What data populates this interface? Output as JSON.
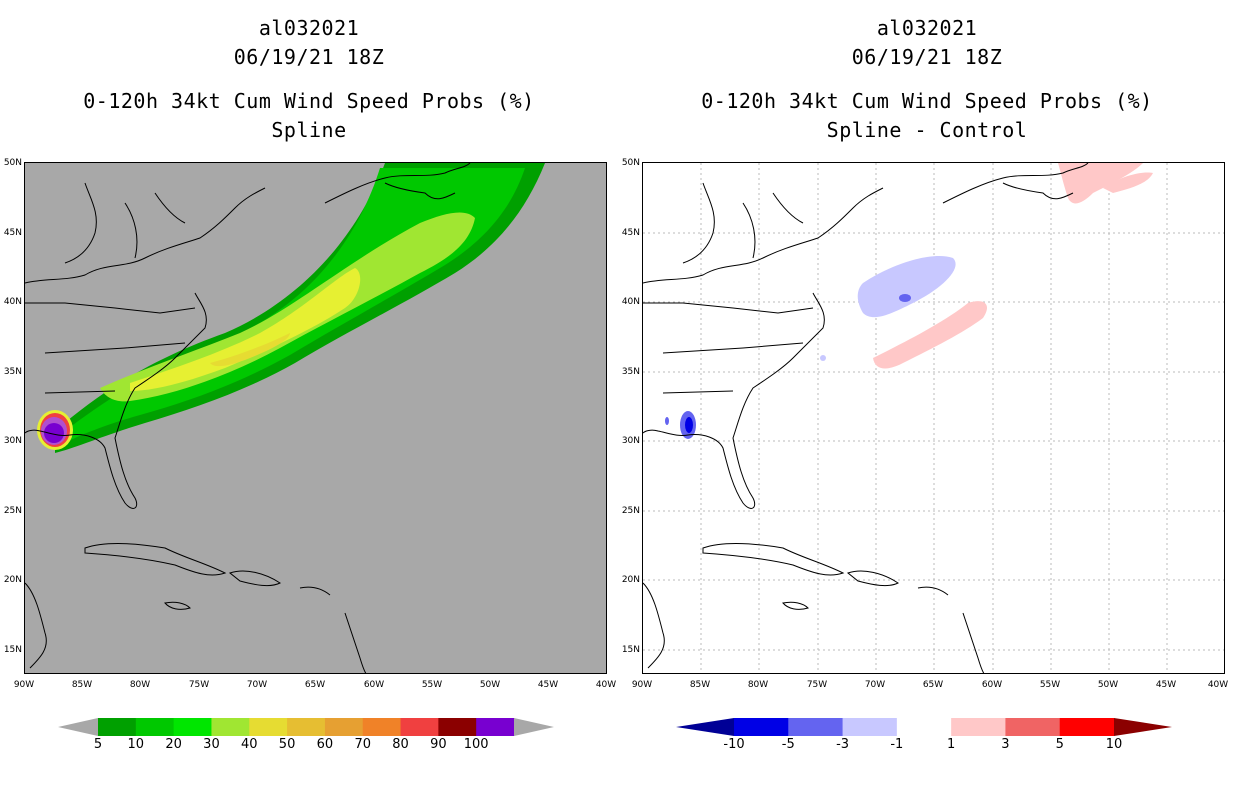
{
  "left_panel": {
    "title": [
      "al032021",
      "06/19/21 18Z",
      "0-120h 34kt Cum Wind Speed Probs (%)",
      "Spline"
    ],
    "background_color": "#a8a8a8",
    "colorbar": {
      "labels": [
        "5",
        "10",
        "20",
        "30",
        "40",
        "50",
        "60",
        "70",
        "80",
        "90",
        "100"
      ],
      "colors": [
        "#00a000",
        "#00c800",
        "#00e600",
        "#a0e632",
        "#e6dc32",
        "#e6be32",
        "#e6a032",
        "#f08228",
        "#f04040",
        "#8b0000",
        "#7800d0"
      ]
    }
  },
  "right_panel": {
    "title": [
      "al032021",
      "06/19/21 18Z",
      "0-120h 34kt Cum Wind Speed Probs (%)",
      "Spline - Control"
    ],
    "background_color": "#ffffff",
    "colorbar": {
      "labels": [
        "-10",
        "-5",
        "-3",
        "-1",
        "1",
        "3",
        "5",
        "10"
      ],
      "colors": [
        "#000096",
        "#0000e6",
        "#6464f0",
        "#c8c8ff",
        "#ffffff",
        "#ffc8c8",
        "#f06464",
        "#ff0000",
        "#8b0000"
      ]
    }
  },
  "axes": {
    "lat_labels": [
      "50N",
      "45N",
      "40N",
      "35N",
      "30N",
      "25N",
      "20N",
      "15N"
    ],
    "lon_labels": [
      "90W",
      "85W",
      "80W",
      "75W",
      "70W",
      "65W",
      "60W",
      "55W",
      "50W",
      "45W",
      "40W"
    ]
  }
}
